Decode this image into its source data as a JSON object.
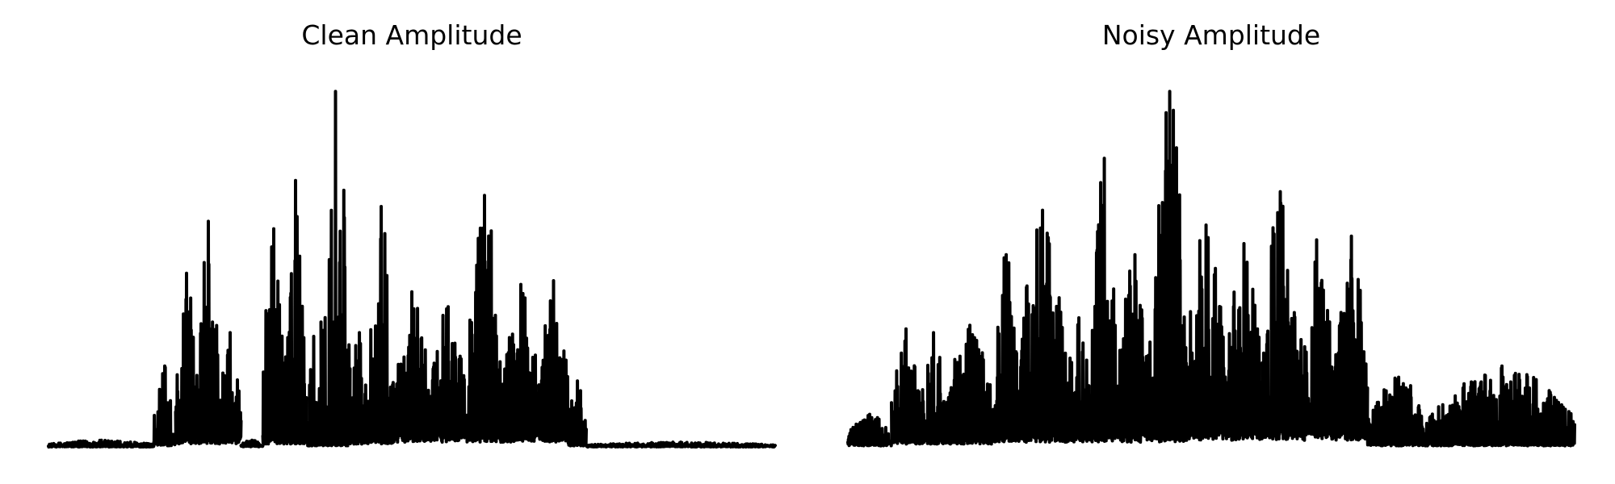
{
  "chart_data": [
    {
      "type": "line",
      "title": "Clean Amplitude",
      "axes_visible": false,
      "grid": false,
      "line_color": "#000000",
      "xlim": [
        0,
        100
      ],
      "ylim": [
        0,
        1
      ],
      "segments": [
        {
          "range": [
            0,
            14.5
          ],
          "base": 0.004,
          "peak": 0.02
        },
        {
          "range": [
            14.5,
            17.5
          ],
          "base": 0.01,
          "peak": 0.22
        },
        {
          "range": [
            17.5,
            20.5
          ],
          "base": 0.02,
          "peak": 0.47
        },
        {
          "range": [
            20.5,
            23.5
          ],
          "base": 0.02,
          "peak": 0.61
        },
        {
          "range": [
            23.5,
            26.5
          ],
          "base": 0.02,
          "peak": 0.31
        },
        {
          "range": [
            26.5,
            29.5
          ],
          "base": 0.005,
          "peak": 0.02
        },
        {
          "range": [
            29.5,
            32.5
          ],
          "base": 0.02,
          "peak": 0.59
        },
        {
          "range": [
            32.5,
            35.5
          ],
          "base": 0.02,
          "peak": 0.72
        },
        {
          "range": [
            35.5,
            37.5
          ],
          "base": 0.01,
          "peak": 0.3
        },
        {
          "range": [
            37.5,
            41.5
          ],
          "base": 0.01,
          "peak": 0.96
        },
        {
          "range": [
            41.5,
            44.0
          ],
          "base": 0.02,
          "peak": 0.31
        },
        {
          "range": [
            44.0,
            47.5
          ],
          "base": 0.02,
          "peak": 0.65
        },
        {
          "range": [
            47.5,
            52.5
          ],
          "base": 0.03,
          "peak": 0.42
        },
        {
          "range": [
            52.5,
            57.5
          ],
          "base": 0.03,
          "peak": 0.38
        },
        {
          "range": [
            57.5,
            62.5
          ],
          "base": 0.03,
          "peak": 0.68
        },
        {
          "range": [
            62.5,
            67.5
          ],
          "base": 0.03,
          "peak": 0.44
        },
        {
          "range": [
            67.5,
            71.5
          ],
          "base": 0.03,
          "peak": 0.45
        },
        {
          "range": [
            71.5,
            74.0
          ],
          "base": 0.01,
          "peak": 0.18
        },
        {
          "range": [
            74.0,
            100
          ],
          "base": 0.004,
          "peak": 0.015
        }
      ]
    },
    {
      "type": "line",
      "title": "Noisy Amplitude",
      "axes_visible": false,
      "grid": false,
      "line_color": "#000000",
      "xlim": [
        0,
        100
      ],
      "ylim": [
        0,
        1
      ],
      "segments": [
        {
          "range": [
            0,
            6.0
          ],
          "base": 0.01,
          "peak": 0.09
        },
        {
          "range": [
            6.0,
            10.0
          ],
          "base": 0.02,
          "peak": 0.32
        },
        {
          "range": [
            10.0,
            13.5
          ],
          "base": 0.02,
          "peak": 0.31
        },
        {
          "range": [
            13.5,
            20.0
          ],
          "base": 0.02,
          "peak": 0.33
        },
        {
          "range": [
            20.0,
            23.5
          ],
          "base": 0.03,
          "peak": 0.52
        },
        {
          "range": [
            23.5,
            30.0
          ],
          "base": 0.03,
          "peak": 0.64
        },
        {
          "range": [
            30.0,
            33.5
          ],
          "base": 0.03,
          "peak": 0.35
        },
        {
          "range": [
            33.5,
            37.0
          ],
          "base": 0.03,
          "peak": 0.78
        },
        {
          "range": [
            37.0,
            42.0
          ],
          "base": 0.03,
          "peak": 0.52
        },
        {
          "range": [
            42.0,
            46.5
          ],
          "base": 0.03,
          "peak": 0.96
        },
        {
          "range": [
            46.5,
            52.0
          ],
          "base": 0.04,
          "peak": 0.6
        },
        {
          "range": [
            52.0,
            57.0
          ],
          "base": 0.04,
          "peak": 0.55
        },
        {
          "range": [
            57.0,
            62.0
          ],
          "base": 0.04,
          "peak": 0.69
        },
        {
          "range": [
            62.0,
            67.0
          ],
          "base": 0.04,
          "peak": 0.56
        },
        {
          "range": [
            67.0,
            71.5
          ],
          "base": 0.04,
          "peak": 0.57
        },
        {
          "range": [
            71.5,
            80.0
          ],
          "base": 0.01,
          "peak": 0.19
        },
        {
          "range": [
            80.0,
            100
          ],
          "base": 0.01,
          "peak": 0.22
        }
      ]
    }
  ]
}
